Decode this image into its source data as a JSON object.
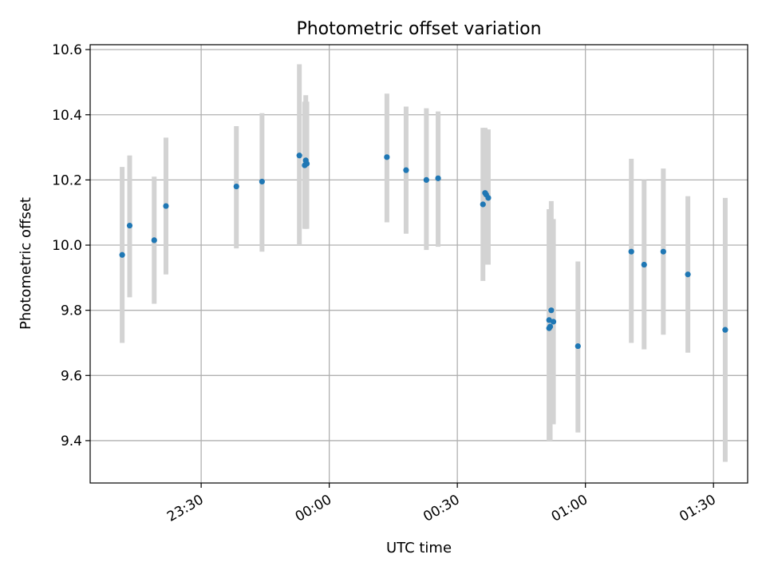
{
  "chart_data": {
    "type": "scatter",
    "title": "Photometric offset variation",
    "xlabel": "UTC time",
    "ylabel": "Photometric offset",
    "x_ticks": [
      "23:30",
      "00:00",
      "00:30",
      "01:00",
      "01:30"
    ],
    "y_ticks": [
      "9.4",
      "9.6",
      "9.8",
      "10.0",
      "10.2",
      "10.4",
      "10.6"
    ],
    "xlim": [
      "23:04",
      "01:38"
    ],
    "ylim": [
      9.27,
      10.615
    ],
    "grid": true,
    "colors": {
      "points": "#1f77b4",
      "error_bars": "#d3d3d3"
    },
    "points": [
      {
        "x": "23:11:30",
        "y": 9.97,
        "ylo": 9.7,
        "yhi": 10.24
      },
      {
        "x": "23:13:15",
        "y": 10.06,
        "ylo": 9.84,
        "yhi": 10.275
      },
      {
        "x": "23:19:00",
        "y": 10.015,
        "ylo": 9.82,
        "yhi": 10.21
      },
      {
        "x": "23:21:45",
        "y": 10.12,
        "ylo": 9.91,
        "yhi": 10.33
      },
      {
        "x": "23:38:15",
        "y": 10.18,
        "ylo": 9.99,
        "yhi": 10.365
      },
      {
        "x": "23:44:15",
        "y": 10.195,
        "ylo": 9.98,
        "yhi": 10.405
      },
      {
        "x": "23:53:00",
        "y": 10.275,
        "ylo": 10.0,
        "yhi": 10.555
      },
      {
        "x": "23:54:15",
        "y": 10.245,
        "ylo": 10.05,
        "yhi": 10.44
      },
      {
        "x": "23:54:30",
        "y": 10.26,
        "ylo": 10.05,
        "yhi": 10.46
      },
      {
        "x": "23:54:45",
        "y": 10.25,
        "ylo": 10.05,
        "yhi": 10.44
      },
      {
        "x": "00:13:30",
        "y": 10.27,
        "ylo": 10.07,
        "yhi": 10.465
      },
      {
        "x": "00:18:00",
        "y": 10.23,
        "ylo": 10.035,
        "yhi": 10.425
      },
      {
        "x": "00:22:45",
        "y": 10.2,
        "ylo": 9.985,
        "yhi": 10.42
      },
      {
        "x": "00:25:30",
        "y": 10.205,
        "ylo": 9.995,
        "yhi": 10.41
      },
      {
        "x": "00:36:00",
        "y": 10.125,
        "ylo": 9.89,
        "yhi": 10.36
      },
      {
        "x": "00:36:30",
        "y": 10.16,
        "ylo": 9.94,
        "yhi": 10.36
      },
      {
        "x": "00:36:45",
        "y": 10.155,
        "ylo": 9.94,
        "yhi": 10.355
      },
      {
        "x": "00:37:15",
        "y": 10.145,
        "ylo": 9.94,
        "yhi": 10.355
      },
      {
        "x": "00:51:30",
        "y": 9.77,
        "ylo": 9.4,
        "yhi": 10.11
      },
      {
        "x": "00:51:30",
        "y": 9.745,
        "ylo": 9.4,
        "yhi": 10.11
      },
      {
        "x": "00:51:45",
        "y": 9.75,
        "ylo": 9.4,
        "yhi": 10.11
      },
      {
        "x": "00:52:00",
        "y": 9.8,
        "ylo": 9.45,
        "yhi": 10.135
      },
      {
        "x": "00:52:30",
        "y": 9.765,
        "ylo": 9.45,
        "yhi": 10.08
      },
      {
        "x": "00:58:15",
        "y": 9.69,
        "ylo": 9.425,
        "yhi": 9.95
      },
      {
        "x": "01:10:45",
        "y": 9.98,
        "ylo": 9.7,
        "yhi": 10.265
      },
      {
        "x": "01:13:45",
        "y": 9.94,
        "ylo": 9.68,
        "yhi": 10.2
      },
      {
        "x": "01:18:15",
        "y": 9.98,
        "ylo": 9.725,
        "yhi": 10.235
      },
      {
        "x": "01:24:00",
        "y": 9.91,
        "ylo": 9.67,
        "yhi": 10.15
      },
      {
        "x": "01:32:45",
        "y": 9.74,
        "ylo": 9.335,
        "yhi": 10.145
      }
    ]
  }
}
